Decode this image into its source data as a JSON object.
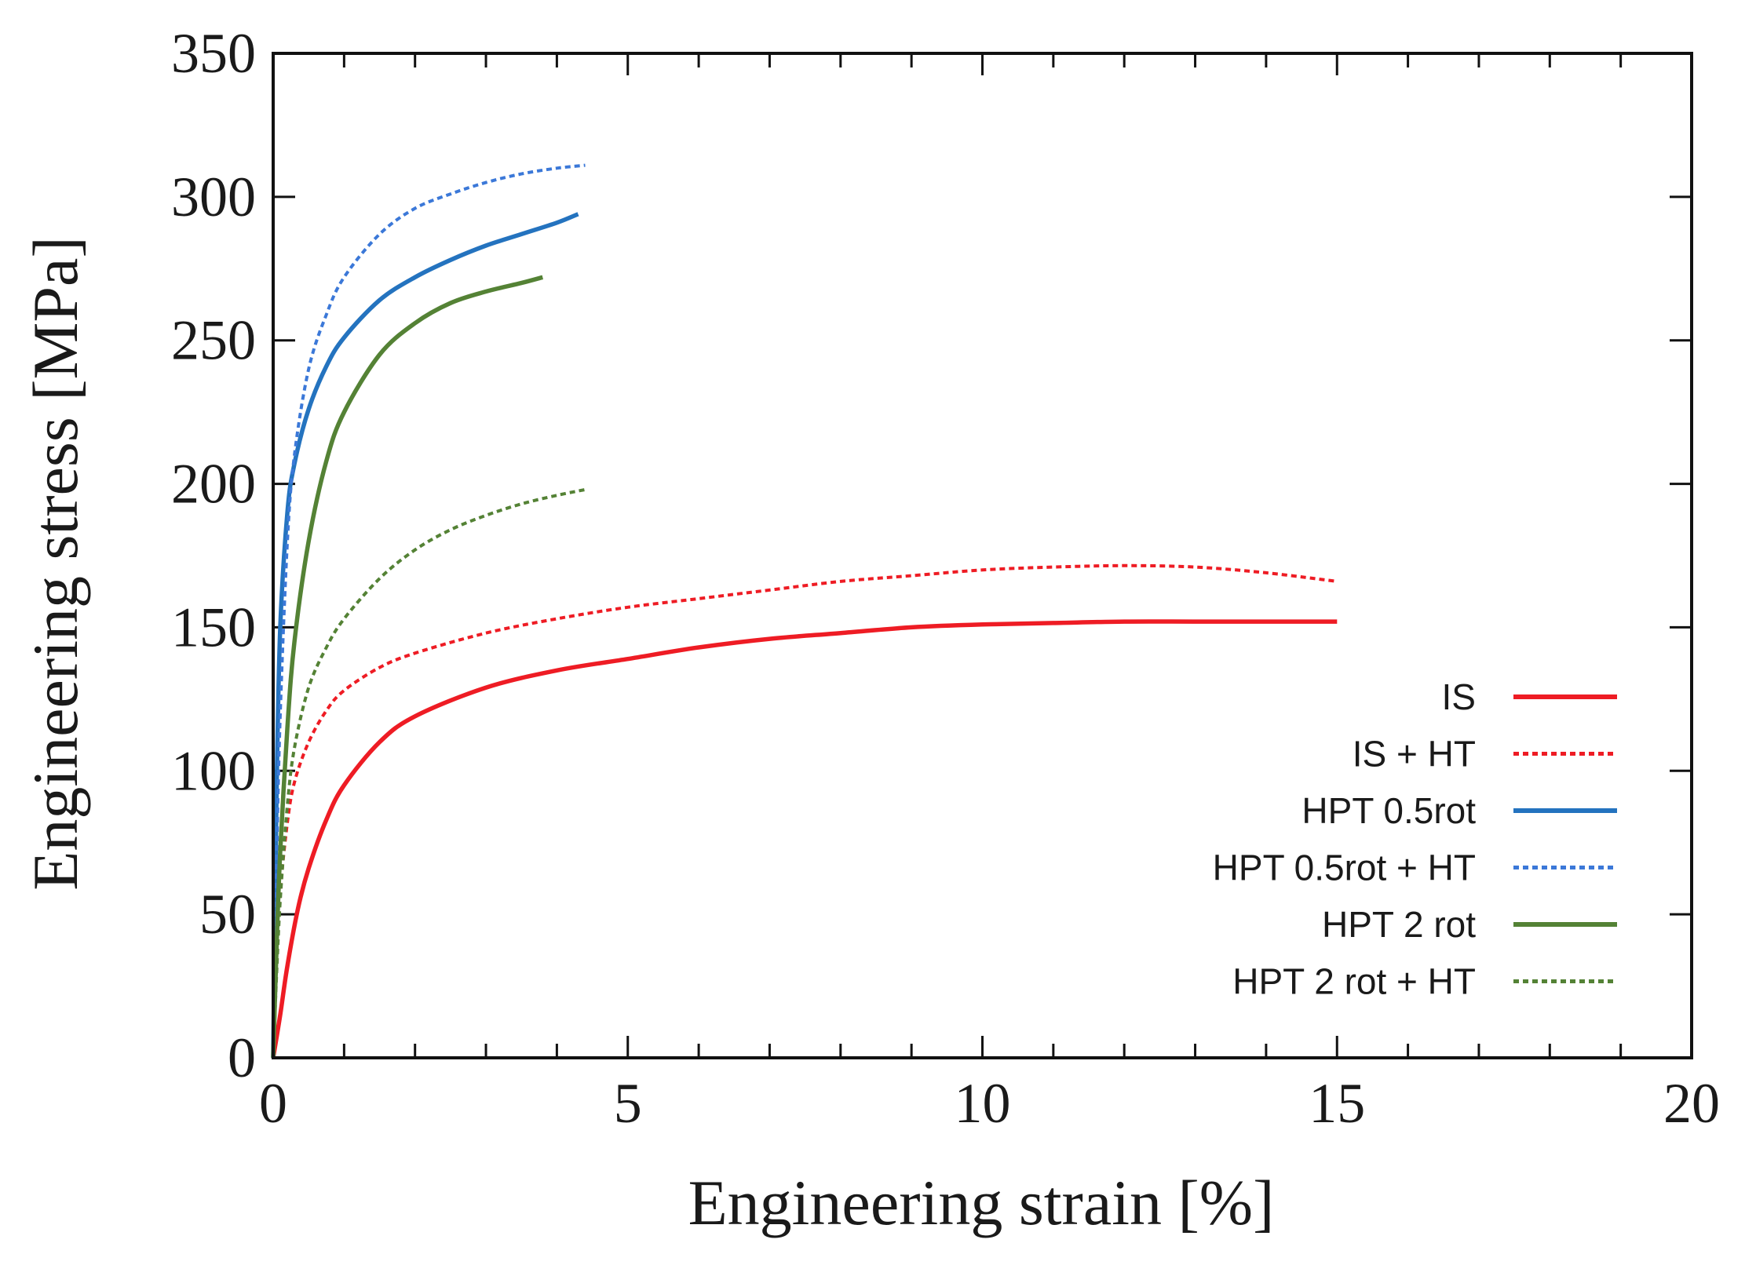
{
  "chart_data": {
    "type": "line",
    "title": "",
    "xlabel": "Engineering strain [%]",
    "ylabel": "Engineering stress [MPa]",
    "xlim": [
      0,
      20
    ],
    "ylim": [
      0,
      350
    ],
    "xticks": [
      0,
      5,
      10,
      15,
      20
    ],
    "yticks": [
      0,
      50,
      100,
      150,
      200,
      250,
      300,
      350
    ],
    "x_minor_step": 1,
    "y_minor_step": 50,
    "grid": false,
    "legend_position": "right",
    "series": [
      {
        "name": "IS",
        "color": "#ee1c24",
        "style": "solid",
        "x": [
          0,
          0.1,
          0.2,
          0.35,
          0.5,
          0.75,
          1,
          1.5,
          2,
          3,
          4,
          5,
          6,
          7,
          8,
          9,
          10,
          11,
          12,
          13,
          14,
          15
        ],
        "y": [
          0,
          15,
          32,
          52,
          66,
          83,
          95,
          110,
          119,
          129,
          135,
          139,
          143,
          146,
          148,
          150,
          151,
          151.5,
          152,
          152,
          152,
          152
        ]
      },
      {
        "name": "IS + HT",
        "color": "#ee1c24",
        "style": "dotted",
        "x": [
          0,
          0.05,
          0.1,
          0.2,
          0.3,
          0.5,
          0.75,
          1,
          1.5,
          2,
          3,
          4,
          5,
          6,
          7,
          8,
          9,
          10,
          11,
          12,
          13,
          14,
          15
        ],
        "y": [
          0,
          35,
          58,
          82,
          96,
          110,
          121,
          128,
          136,
          141,
          148,
          153,
          157,
          160,
          163,
          166,
          168,
          170,
          171,
          171.5,
          171,
          169,
          166
        ]
      },
      {
        "name": "HPT 0.5rot",
        "color": "#2473bf",
        "style": "solid",
        "x": [
          0,
          0.05,
          0.1,
          0.2,
          0.3,
          0.5,
          0.75,
          1,
          1.5,
          2,
          2.5,
          3,
          3.5,
          4,
          4.3
        ],
        "y": [
          0,
          95,
          150,
          190,
          207,
          226,
          241,
          251,
          264,
          272,
          278,
          283,
          287,
          291,
          294
        ]
      },
      {
        "name": "HPT 0.5rot + HT",
        "color": "#3b78d8",
        "style": "dotted",
        "x": [
          0,
          0.05,
          0.1,
          0.2,
          0.3,
          0.5,
          0.75,
          1,
          1.5,
          2,
          2.5,
          3,
          3.5,
          4,
          4.4
        ],
        "y": [
          0,
          70,
          120,
          180,
          210,
          240,
          259,
          272,
          287,
          296,
          301,
          305,
          308,
          310,
          311
        ]
      },
      {
        "name": "HPT 2 rot",
        "color": "#548235",
        "style": "solid",
        "x": [
          0,
          0.05,
          0.1,
          0.2,
          0.3,
          0.5,
          0.75,
          1,
          1.5,
          2,
          2.5,
          3,
          3.5,
          3.8
        ],
        "y": [
          0,
          40,
          72,
          115,
          145,
          180,
          208,
          225,
          245,
          256,
          263,
          267,
          270,
          272
        ]
      },
      {
        "name": "HPT 2 rot + HT",
        "color": "#548235",
        "style": "dotted",
        "x": [
          0,
          0.05,
          0.1,
          0.2,
          0.3,
          0.5,
          0.75,
          1,
          1.5,
          2,
          2.5,
          3,
          3.5,
          4,
          4.4
        ],
        "y": [
          0,
          30,
          55,
          88,
          108,
          129,
          143,
          153,
          167,
          177,
          184,
          189,
          193,
          196,
          198
        ]
      }
    ]
  }
}
